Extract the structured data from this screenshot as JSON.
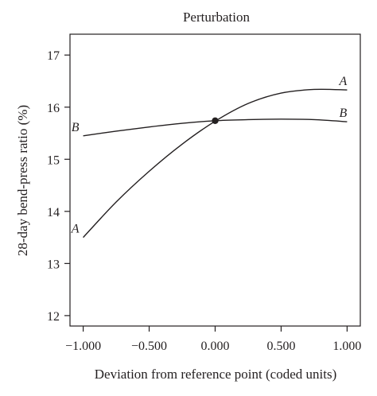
{
  "chart_data": {
    "type": "line",
    "title": "Perturbation",
    "xlabel": "Deviation from reference point (coded units)",
    "ylabel": "28-day bend-press ratio (%)",
    "xlim": [
      -1.1,
      1.1
    ],
    "ylim": [
      11.8,
      17.4
    ],
    "xticks": [
      -1.0,
      -0.5,
      0.0,
      0.5,
      1.0
    ],
    "xtick_labels": [
      "−1.000",
      "−0.500",
      "0.000",
      "0.500",
      "1.000"
    ],
    "yticks": [
      12,
      13,
      14,
      15,
      16,
      17
    ],
    "ytick_labels": [
      "12",
      "13",
      "14",
      "15",
      "16",
      "17"
    ],
    "grid": false,
    "legend": "none",
    "series": [
      {
        "name": "A",
        "x": [
          -1.0,
          -0.75,
          -0.5,
          -0.25,
          0.0,
          0.25,
          0.5,
          0.75,
          1.0
        ],
        "values": [
          13.5,
          14.18,
          14.77,
          15.29,
          15.73,
          16.07,
          16.27,
          16.34,
          16.33
        ]
      },
      {
        "name": "B",
        "x": [
          -1.0,
          -0.75,
          -0.5,
          -0.25,
          0.0,
          0.25,
          0.5,
          0.75,
          1.0
        ],
        "values": [
          15.45,
          15.54,
          15.62,
          15.69,
          15.74,
          15.76,
          15.77,
          15.76,
          15.72
        ]
      }
    ],
    "reference_point": {
      "x": 0.0,
      "y": 15.74
    }
  }
}
